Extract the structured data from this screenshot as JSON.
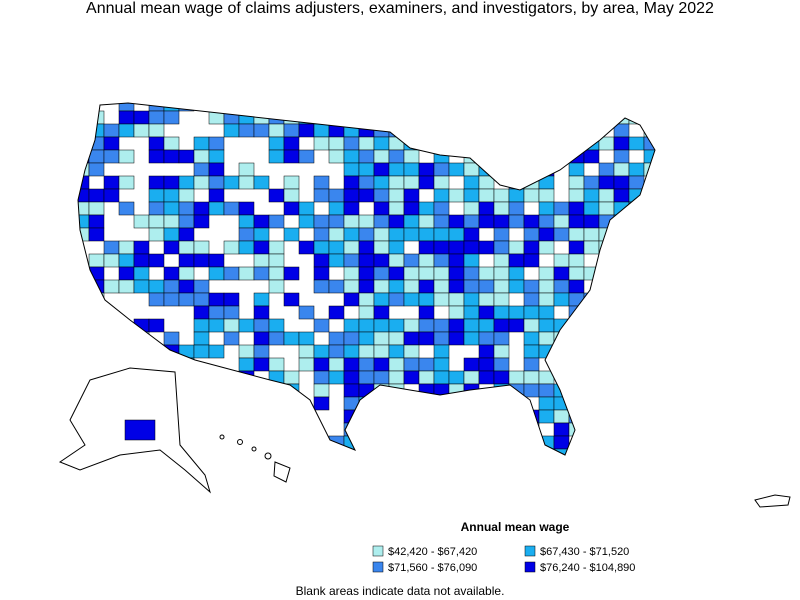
{
  "title": "Annual mean wage of claims adjusters, examiners, and investigators, by area, May 2022",
  "legend": {
    "title": "Annual mean wage",
    "items": [
      {
        "label": "$42,420 - $67,420",
        "color": "#aeeeee"
      },
      {
        "label": "$67,430 - $71,520",
        "color": "#1aaef0"
      },
      {
        "label": "$71,560 - $76,090",
        "color": "#3a86ee"
      },
      {
        "label": "$76,240 - $104,890",
        "color": "#0000e6"
      }
    ]
  },
  "note": "Blank areas indicate data not available."
}
